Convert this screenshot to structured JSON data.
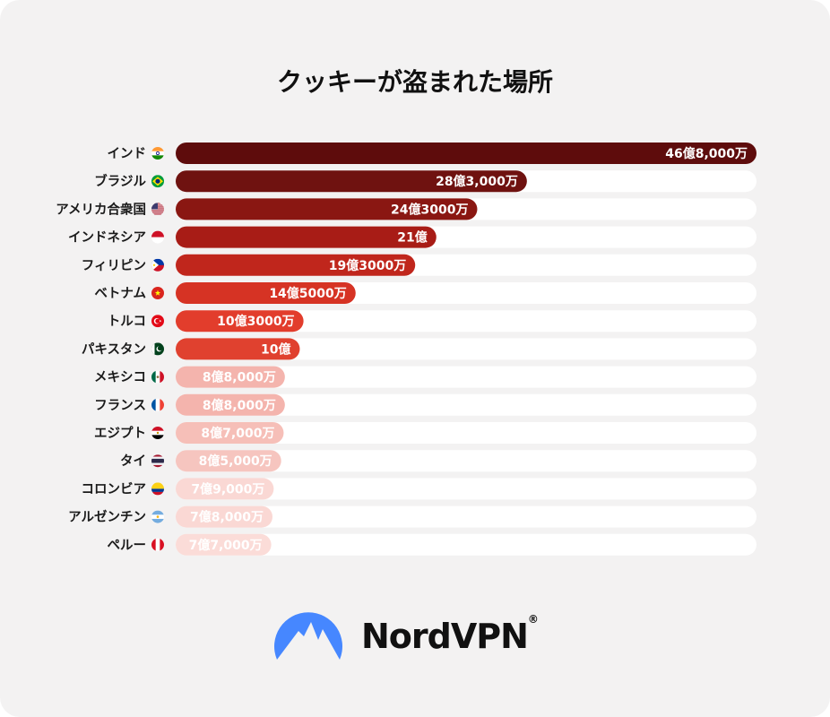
{
  "chart_data": {
    "type": "bar",
    "orientation": "horizontal",
    "title": "クッキーが盗まれた場所",
    "unit": "stolen cookies",
    "categories": [
      "インド",
      "ブラジル",
      "アメリカ合衆国",
      "インドネシア",
      "フィリピン",
      "ベトナム",
      "トルコ",
      "パキスタン",
      "メキシコ",
      "フランス",
      "エジプト",
      "タイ",
      "コロンビア",
      "アルゼンチン",
      "ペルー"
    ],
    "values": [
      4680000000,
      2830000000,
      2430000000,
      2100000000,
      1930000000,
      1450000000,
      1030000000,
      1000000000,
      880000000,
      880000000,
      870000000,
      850000000,
      790000000,
      780000000,
      770000000
    ],
    "value_labels": [
      "46億8,000万",
      "28億3,000万",
      "24億3000万",
      "21億",
      "19億3000万",
      "14億5000万",
      "10億3000万",
      "10億",
      "8億8,000万",
      "8億8,000万",
      "8億7,000万",
      "8億5,000万",
      "7億9,000万",
      "7億8,000万",
      "7億7,000万"
    ],
    "bar_colors": [
      "#5e0c0c",
      "#6f1210",
      "#8a1712",
      "#a81c16",
      "#c0261c",
      "#d63324",
      "#e23d2c",
      "#e0412f",
      "#f4b4ad",
      "#f4b4ad",
      "#f6bfb8",
      "#f6c5bf",
      "#fad8d4",
      "#fad8d4",
      "#fbdcd8"
    ],
    "flags": [
      "india-flag-icon",
      "brazil-flag-icon",
      "usa-flag-icon",
      "indonesia-flag-icon",
      "philippines-flag-icon",
      "vietnam-flag-icon",
      "turkey-flag-icon",
      "pakistan-flag-icon",
      "mexico-flag-icon",
      "france-flag-icon",
      "egypt-flag-icon",
      "thailand-flag-icon",
      "colombia-flag-icon",
      "argentina-flag-icon",
      "peru-flag-icon"
    ],
    "xlim": [
      0,
      4680000000
    ],
    "track_color": "#ffffff",
    "grid": false,
    "legend": "none"
  },
  "brand": {
    "name": "NordVPN",
    "mark": "®",
    "logo_color": "#4687ff"
  }
}
